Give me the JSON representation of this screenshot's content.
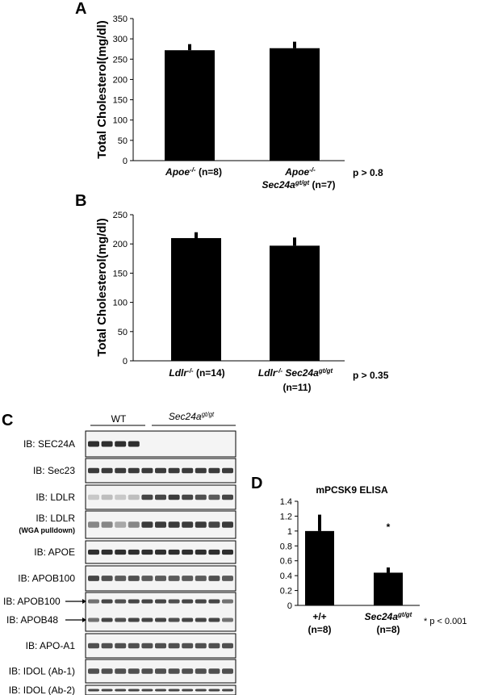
{
  "chart_data": [
    {
      "panel": "A",
      "type": "bar",
      "ylabel": "Total Cholesterol(mg/dl)",
      "ylim": [
        0,
        350
      ],
      "yticks": [
        0,
        50,
        100,
        150,
        200,
        250,
        300,
        350
      ],
      "categories": [
        {
          "main": "Apoe",
          "sup": "-/-",
          "rest": " (n=8)",
          "line2_main": "",
          "line2_sup": "",
          "line2_rest": ""
        },
        {
          "main": "Apoe",
          "sup": "-/-",
          "rest": "",
          "line2_main": "Sec24a",
          "line2_sup": "gt/gt",
          "line2_rest": " (n=7)"
        }
      ],
      "values": [
        272,
        277
      ],
      "errors": [
        15,
        16
      ],
      "annotation": "p > 0.8"
    },
    {
      "panel": "B",
      "type": "bar",
      "ylabel": "Total Cholesterol(mg/dl)",
      "ylim": [
        0,
        250
      ],
      "yticks": [
        0,
        50,
        100,
        150,
        200,
        250
      ],
      "categories": [
        {
          "main": "Ldlr",
          "sup": "-/-",
          "rest": " (n=14)",
          "line2": ""
        },
        {
          "main": "Ldlr",
          "sup": "-/-",
          "main2": " Sec24a",
          "sup2": "gt/gt",
          "rest": "",
          "line2": "(n=11)"
        }
      ],
      "values": [
        210,
        197
      ],
      "errors": [
        10,
        14
      ],
      "annotation": "p > 0.35"
    },
    {
      "panel": "D",
      "type": "bar",
      "title": "mPCSK9 ELISA",
      "ylim": [
        0,
        1.4
      ],
      "yticks": [
        "0",
        "0.2",
        "0.4",
        "0.6",
        "0.8",
        "1",
        "1.2",
        "1.4"
      ],
      "categories": [
        {
          "main": "+/+",
          "sup": "",
          "line2": "(n=8)"
        },
        {
          "main": "Sec24a",
          "sup": "gt/gt",
          "line2": "(n=8)"
        }
      ],
      "values": [
        1.0,
        0.44
      ],
      "errors": [
        0.22,
        0.07
      ],
      "marker": "*",
      "annotation": "* p < 0.001"
    }
  ],
  "blot": {
    "panel": "C",
    "groups": [
      {
        "label": "WT",
        "sup": ""
      },
      {
        "label": "Sec24a",
        "sup": "gt/gt"
      }
    ],
    "lanes": 11,
    "rows": [
      {
        "label": "IB: SEC24A",
        "sub": "",
        "intensity": [
          0.9,
          0.9,
          0.9,
          0.9,
          0,
          0,
          0,
          0,
          0,
          0,
          0
        ]
      },
      {
        "label": "IB: Sec23",
        "sub": "",
        "intensity": [
          0.85,
          0.85,
          0.85,
          0.85,
          0.85,
          0.85,
          0.85,
          0.85,
          0.85,
          0.85,
          0.85
        ]
      },
      {
        "label": "IB: LDLR",
        "sub": "",
        "intensity": [
          0.2,
          0.25,
          0.2,
          0.25,
          0.8,
          0.8,
          0.85,
          0.8,
          0.75,
          0.7,
          0.8
        ]
      },
      {
        "label": "IB: LDLR",
        "sub": "(WGA pulldown)",
        "intensity": [
          0.5,
          0.5,
          0.35,
          0.5,
          0.85,
          0.85,
          0.85,
          0.85,
          0.85,
          0.8,
          0.85
        ]
      },
      {
        "label": "IB: APOE",
        "sub": "",
        "intensity": [
          0.9,
          0.9,
          0.9,
          0.9,
          0.9,
          0.9,
          0.9,
          0.9,
          0.9,
          0.9,
          0.9
        ]
      },
      {
        "label": "IB: APOB100",
        "sub": "",
        "intensity": [
          0.8,
          0.75,
          0.7,
          0.75,
          0.7,
          0.7,
          0.7,
          0.7,
          0.7,
          0.75,
          0.7
        ]
      },
      {
        "label": "IB: APOB100",
        "sub": "",
        "double": true,
        "label2": "IB: APOB48",
        "intensity": [
          0.6,
          0.8,
          0.75,
          0.8,
          0.8,
          0.8,
          0.75,
          0.8,
          0.8,
          0.8,
          0.6
        ]
      },
      {
        "label": "IB: APO-A1",
        "sub": "",
        "intensity": [
          0.75,
          0.75,
          0.75,
          0.75,
          0.75,
          0.75,
          0.75,
          0.75,
          0.75,
          0.75,
          0.75
        ]
      },
      {
        "label": "IB: IDOL (Ab-1)",
        "sub": "",
        "intensity": [
          0.75,
          0.75,
          0.75,
          0.75,
          0.75,
          0.75,
          0.75,
          0.75,
          0.75,
          0.75,
          0.75
        ]
      },
      {
        "label": "IB: IDOL (Ab-2)",
        "sub": "",
        "intensity": [
          0.8,
          0.8,
          0.8,
          0.8,
          0.8,
          0.8,
          0.8,
          0.8,
          0.8,
          0.8,
          0.8
        ]
      }
    ]
  },
  "colors": {
    "bar": "#000000",
    "axis": "#000000",
    "band": "#1a1a1a"
  }
}
